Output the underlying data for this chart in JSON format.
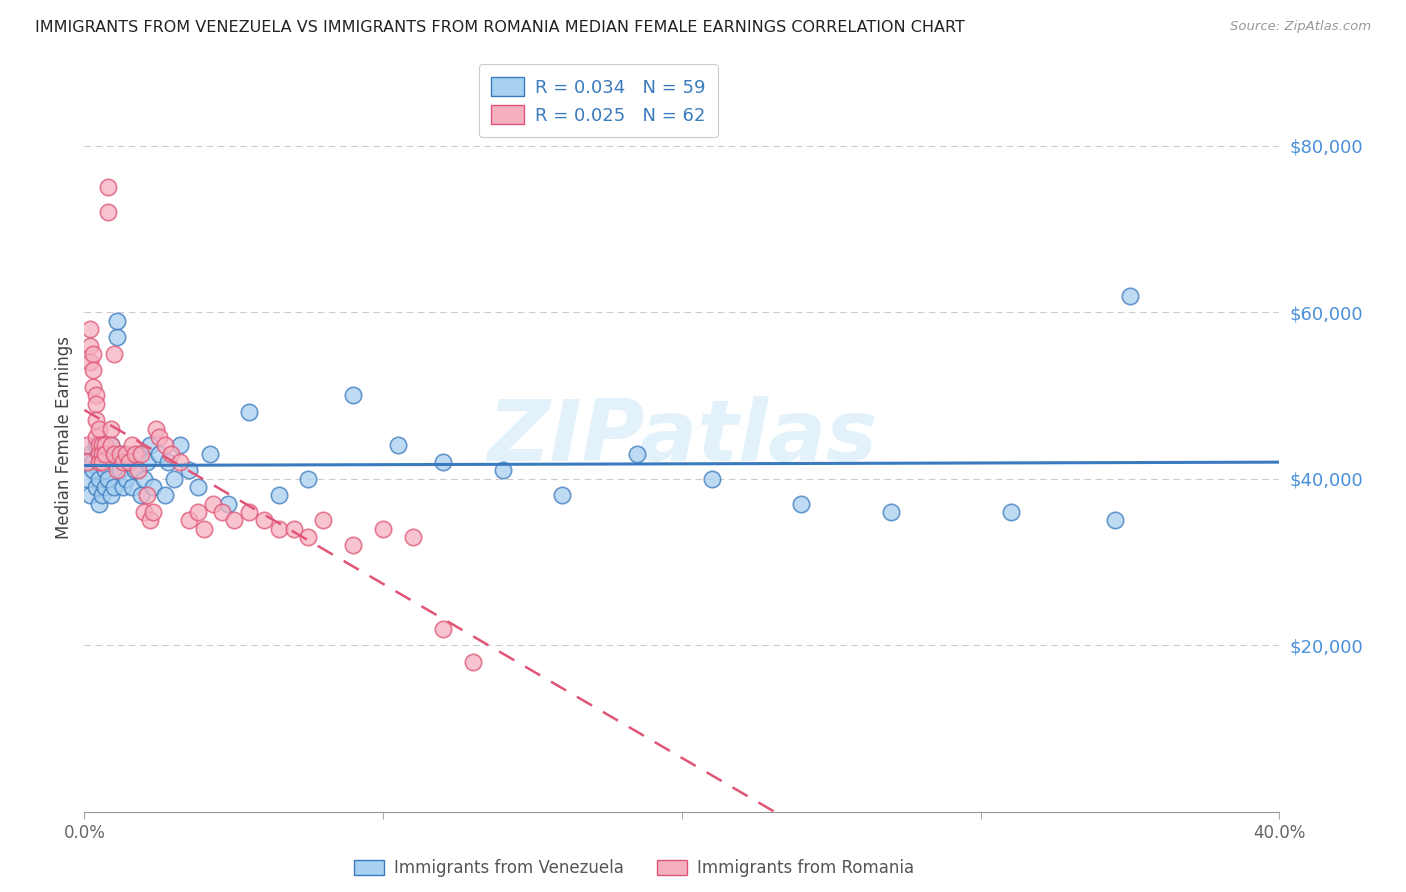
{
  "title": "IMMIGRANTS FROM VENEZUELA VS IMMIGRANTS FROM ROMANIA MEDIAN FEMALE EARNINGS CORRELATION CHART",
  "source": "Source: ZipAtlas.com",
  "ylabel": "Median Female Earnings",
  "x_min": 0.0,
  "x_max": 0.4,
  "y_min": 0,
  "y_max": 90000,
  "color_venezuela": "#A8D0F0",
  "color_romania": "#F5B0C0",
  "color_line_venezuela": "#3A7BBF",
  "color_line_romania": "#E05575",
  "watermark": "ZIPatlas",
  "legend_R_ven": "R = 0.034",
  "legend_N_ven": "N = 59",
  "legend_R_rom": "R = 0.025",
  "legend_N_rom": "N = 62",
  "legend_label_ven": "Immigrants from Venezuela",
  "legend_label_rom": "Immigrants from Romania",
  "venezuela_x": [
    0.001,
    0.002,
    0.002,
    0.003,
    0.003,
    0.004,
    0.004,
    0.005,
    0.005,
    0.005,
    0.006,
    0.006,
    0.007,
    0.007,
    0.008,
    0.008,
    0.009,
    0.009,
    0.01,
    0.01,
    0.011,
    0.011,
    0.012,
    0.013,
    0.013,
    0.014,
    0.015,
    0.016,
    0.017,
    0.018,
    0.019,
    0.02,
    0.021,
    0.022,
    0.023,
    0.025,
    0.027,
    0.028,
    0.03,
    0.032,
    0.035,
    0.038,
    0.042,
    0.048,
    0.055,
    0.065,
    0.075,
    0.09,
    0.105,
    0.12,
    0.14,
    0.16,
    0.185,
    0.21,
    0.24,
    0.27,
    0.31,
    0.345,
    0.35
  ],
  "venezuela_y": [
    40000,
    43000,
    38000,
    42000,
    41000,
    39000,
    44000,
    37000,
    40000,
    43000,
    38000,
    42000,
    41000,
    39000,
    43000,
    40000,
    38000,
    44000,
    39000,
    42000,
    57000,
    59000,
    41000,
    43000,
    39000,
    40000,
    42000,
    39000,
    41000,
    43000,
    38000,
    40000,
    42000,
    44000,
    39000,
    43000,
    38000,
    42000,
    40000,
    44000,
    41000,
    39000,
    43000,
    37000,
    48000,
    38000,
    40000,
    50000,
    44000,
    42000,
    41000,
    38000,
    43000,
    40000,
    37000,
    36000,
    36000,
    35000,
    62000
  ],
  "romania_x": [
    0.001,
    0.001,
    0.002,
    0.002,
    0.002,
    0.003,
    0.003,
    0.003,
    0.004,
    0.004,
    0.004,
    0.004,
    0.005,
    0.005,
    0.005,
    0.005,
    0.006,
    0.006,
    0.006,
    0.007,
    0.007,
    0.008,
    0.008,
    0.009,
    0.009,
    0.01,
    0.01,
    0.011,
    0.012,
    0.013,
    0.014,
    0.015,
    0.016,
    0.017,
    0.018,
    0.019,
    0.02,
    0.021,
    0.022,
    0.023,
    0.024,
    0.025,
    0.027,
    0.029,
    0.032,
    0.035,
    0.038,
    0.04,
    0.043,
    0.046,
    0.05,
    0.055,
    0.06,
    0.065,
    0.07,
    0.075,
    0.08,
    0.09,
    0.1,
    0.11,
    0.12,
    0.13
  ],
  "romania_y": [
    44000,
    42000,
    58000,
    56000,
    54000,
    55000,
    53000,
    51000,
    50000,
    49000,
    47000,
    45000,
    46000,
    44000,
    43000,
    42000,
    44000,
    43000,
    42000,
    44000,
    43000,
    72000,
    75000,
    46000,
    44000,
    43000,
    55000,
    41000,
    43000,
    42000,
    43000,
    42000,
    44000,
    43000,
    41000,
    43000,
    36000,
    38000,
    35000,
    36000,
    46000,
    45000,
    44000,
    43000,
    42000,
    35000,
    36000,
    34000,
    37000,
    36000,
    35000,
    36000,
    35000,
    34000,
    34000,
    33000,
    35000,
    32000,
    34000,
    33000,
    22000,
    18000
  ]
}
